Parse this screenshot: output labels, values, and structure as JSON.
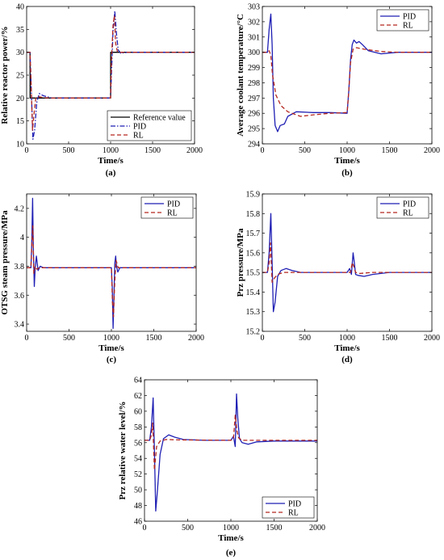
{
  "colors": {
    "pid": "#1f1fb4",
    "rl": "#b3261e",
    "ref": "#000000",
    "axis": "#000000"
  },
  "chart_data": [
    {
      "panel_label": "(a)",
      "type": "line",
      "xlabel": "Time/s",
      "ylabel": "Relative reactor power/%",
      "xlim": [
        0,
        2000
      ],
      "ylim": [
        10,
        40
      ],
      "xticks": [
        0,
        500,
        1000,
        1500,
        2000
      ],
      "yticks": [
        10,
        15,
        20,
        25,
        30,
        35,
        40
      ],
      "grid": false,
      "legend_position": "bottom-right",
      "series": [
        {
          "name": "Reference value",
          "key": "ref",
          "dash": "solid",
          "x": [
            0,
            40,
            41,
            1000,
            1001,
            2000
          ],
          "y": [
            30,
            30,
            20,
            20,
            30,
            30
          ]
        },
        {
          "name": "PID",
          "key": "pid",
          "dash": "dashdot",
          "x": [
            0,
            40,
            55,
            75,
            95,
            120,
            150,
            200,
            300,
            500,
            800,
            1000,
            1010,
            1030,
            1050,
            1070,
            1090,
            1120,
            1200,
            1500,
            2000
          ],
          "y": [
            30,
            30,
            22,
            11,
            13,
            19,
            21,
            20.5,
            20,
            20,
            20,
            20,
            25,
            35,
            39,
            34,
            30.5,
            29.8,
            30,
            30,
            30
          ]
        },
        {
          "name": "RL",
          "key": "rl",
          "dash": "dashed",
          "x": [
            0,
            40,
            52,
            70,
            90,
            110,
            140,
            200,
            300,
            500,
            1000,
            1010,
            1030,
            1045,
            1060,
            1080,
            1110,
            1200,
            2000
          ],
          "y": [
            30,
            30,
            24,
            13,
            17,
            20,
            20.3,
            20.1,
            20,
            20,
            20,
            28,
            36,
            38,
            32,
            30.2,
            30,
            30,
            30
          ]
        }
      ]
    },
    {
      "panel_label": "(b)",
      "type": "line",
      "xlabel": "Time/s",
      "ylabel": "Average coolant temperature/°C",
      "xlim": [
        0,
        2000
      ],
      "ylim": [
        294,
        303
      ],
      "xticks": [
        0,
        500,
        1000,
        1500,
        2000
      ],
      "yticks": [
        294,
        295,
        296,
        297,
        298,
        299,
        300,
        301,
        302,
        303
      ],
      "grid": false,
      "legend_position": "top-right",
      "series": [
        {
          "name": "PID",
          "key": "pid",
          "dash": "solid",
          "x": [
            0,
            60,
            80,
            100,
            115,
            130,
            150,
            180,
            210,
            260,
            300,
            400,
            600,
            800,
            1000,
            1020,
            1040,
            1060,
            1080,
            1110,
            1140,
            1180,
            1250,
            1400,
            1600,
            2000
          ],
          "y": [
            300,
            300,
            301.5,
            302.5,
            300.5,
            297,
            295.2,
            294.8,
            295.2,
            295.3,
            295.8,
            296.1,
            296.05,
            296.05,
            296,
            297.5,
            299.5,
            300.5,
            300.8,
            300.6,
            300.7,
            300.5,
            300.1,
            299.9,
            300,
            300
          ]
        },
        {
          "name": "RL",
          "key": "rl",
          "dash": "dashed",
          "x": [
            0,
            60,
            80,
            100,
            120,
            160,
            220,
            300,
            450,
            600,
            800,
            1000,
            1020,
            1040,
            1070,
            1110,
            1200,
            1400,
            1600,
            2000
          ],
          "y": [
            300,
            300,
            300.1,
            299.8,
            298.5,
            297.2,
            296.5,
            296.1,
            295.8,
            295.9,
            296,
            296.05,
            297.5,
            299.3,
            300.2,
            300.3,
            300.2,
            300.05,
            300,
            300
          ]
        }
      ]
    },
    {
      "panel_label": "(c)",
      "type": "line",
      "xlabel": "Time/s",
      "ylabel": "OTSG steam pressure/MPa",
      "xlim": [
        0,
        2000
      ],
      "ylim": [
        3.35,
        4.3
      ],
      "xticks": [
        0,
        500,
        1000,
        1500,
        2000
      ],
      "yticks": [
        3.4,
        3.6,
        3.8,
        4.0,
        4.2
      ],
      "yticklabels": [
        "3.4",
        "3.6",
        "3.8",
        "4",
        "4.2"
      ],
      "grid": false,
      "legend_position": "top-right",
      "series": [
        {
          "name": "PID",
          "key": "pid",
          "dash": "solid",
          "x": [
            0,
            50,
            60,
            70,
            80,
            90,
            100,
            115,
            135,
            160,
            200,
            500,
            1000,
            1010,
            1020,
            1030,
            1040,
            1050,
            1060,
            1075,
            1100,
            1200,
            2000
          ],
          "y": [
            3.79,
            3.79,
            3.95,
            4.27,
            3.9,
            3.66,
            3.78,
            3.87,
            3.77,
            3.8,
            3.79,
            3.79,
            3.79,
            3.65,
            3.37,
            3.6,
            3.82,
            3.87,
            3.8,
            3.76,
            3.79,
            3.79,
            3.79
          ]
        },
        {
          "name": "RL",
          "key": "rl",
          "dash": "dashed",
          "x": [
            0,
            50,
            62,
            72,
            85,
            100,
            120,
            150,
            500,
            1000,
            1012,
            1025,
            1040,
            1055,
            1080,
            2000
          ],
          "y": [
            3.79,
            3.79,
            3.95,
            4.08,
            3.75,
            3.8,
            3.78,
            3.79,
            3.79,
            3.79,
            3.55,
            3.45,
            3.7,
            3.84,
            3.79,
            3.79
          ]
        }
      ]
    },
    {
      "panel_label": "(d)",
      "type": "line",
      "xlabel": "Time/s",
      "ylabel": "Prz pressure/MPa",
      "xlim": [
        0,
        2000
      ],
      "ylim": [
        15.2,
        15.9
      ],
      "xticks": [
        0,
        500,
        1000,
        1500,
        2000
      ],
      "yticks": [
        15.2,
        15.3,
        15.4,
        15.5,
        15.6,
        15.7,
        15.8,
        15.9
      ],
      "grid": false,
      "legend_position": "top-right",
      "series": [
        {
          "name": "PID",
          "key": "pid",
          "dash": "solid",
          "x": [
            0,
            60,
            80,
            100,
            115,
            130,
            150,
            180,
            220,
            280,
            350,
            450,
            700,
            1000,
            1030,
            1050,
            1070,
            1085,
            1100,
            1130,
            1200,
            1300,
            1500,
            2000
          ],
          "y": [
            15.5,
            15.5,
            15.6,
            15.8,
            15.55,
            15.3,
            15.35,
            15.48,
            15.51,
            15.52,
            15.51,
            15.5,
            15.5,
            15.5,
            15.52,
            15.49,
            15.6,
            15.55,
            15.49,
            15.485,
            15.48,
            15.49,
            15.5,
            15.5
          ]
        },
        {
          "name": "RL",
          "key": "rl",
          "dash": "dashed",
          "x": [
            0,
            60,
            80,
            95,
            115,
            140,
            180,
            250,
            400,
            1000,
            1040,
            1060,
            1080,
            1100,
            1150,
            1300,
            2000
          ],
          "y": [
            15.5,
            15.5,
            15.55,
            15.65,
            15.45,
            15.47,
            15.49,
            15.5,
            15.5,
            15.5,
            15.5,
            15.55,
            15.53,
            15.5,
            15.495,
            15.5,
            15.5
          ]
        }
      ]
    },
    {
      "panel_label": "(e)",
      "type": "line",
      "xlabel": "Time/s",
      "ylabel": "Prz relative water level/%",
      "xlim": [
        0,
        2000
      ],
      "ylim": [
        46,
        64
      ],
      "xticks": [
        0,
        500,
        1000,
        1500,
        2000
      ],
      "yticks": [
        46,
        48,
        50,
        52,
        54,
        56,
        58,
        60,
        62,
        64
      ],
      "grid": false,
      "legend_position": "bottom-right",
      "series": [
        {
          "name": "PID",
          "key": "pid",
          "dash": "solid",
          "x": [
            0,
            60,
            80,
            100,
            115,
            130,
            150,
            180,
            220,
            280,
            350,
            450,
            700,
            1000,
            1030,
            1050,
            1065,
            1080,
            1100,
            1130,
            1200,
            1300,
            1500,
            2000
          ],
          "y": [
            56.3,
            56.3,
            58,
            61.7,
            55,
            47.3,
            50,
            54.5,
            56.5,
            57,
            56.7,
            56.4,
            56.3,
            56.3,
            56.8,
            55.5,
            62.2,
            59,
            56.5,
            56,
            55.8,
            56.1,
            56.2,
            56.2
          ]
        },
        {
          "name": "RL",
          "key": "rl",
          "dash": "dashed",
          "x": [
            0,
            60,
            80,
            95,
            115,
            140,
            180,
            250,
            400,
            1000,
            1030,
            1050,
            1070,
            1090,
            1130,
            1300,
            2000
          ],
          "y": [
            56.3,
            56.3,
            57,
            58.5,
            52.5,
            55.5,
            56.2,
            56.4,
            56.35,
            56.3,
            56.5,
            59.5,
            57.5,
            56.6,
            56.3,
            56.3,
            56.3
          ]
        }
      ]
    }
  ]
}
